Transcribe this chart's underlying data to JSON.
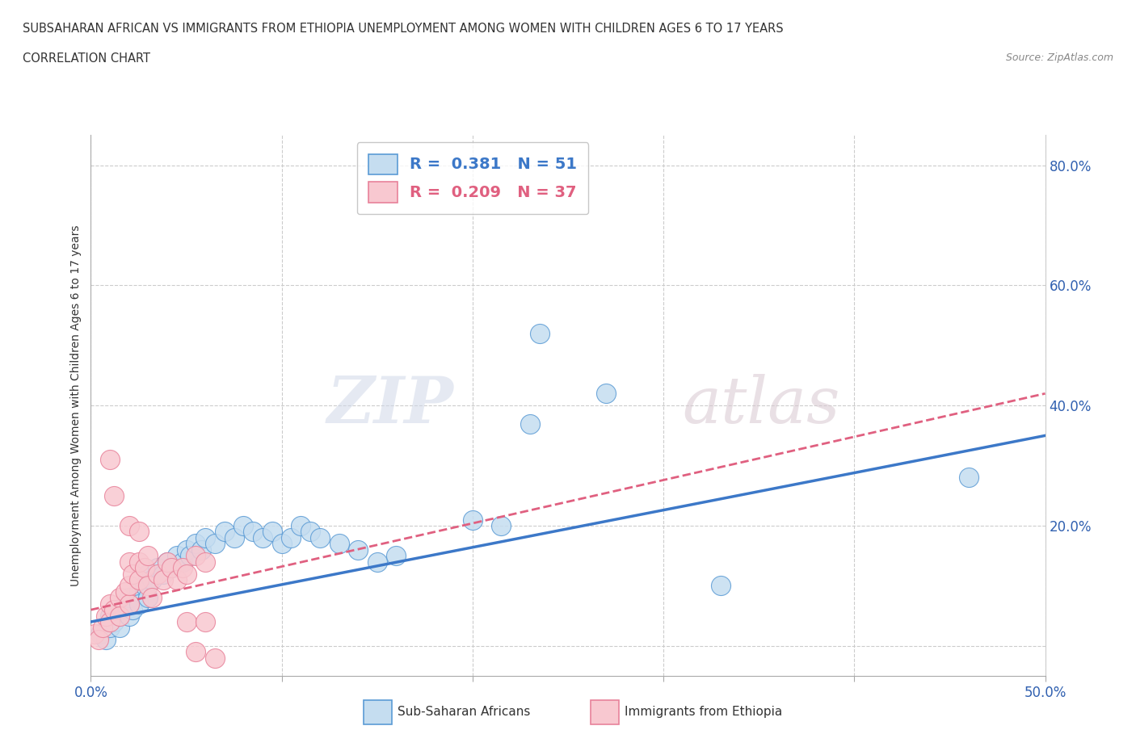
{
  "title_line1": "SUBSAHARAN AFRICAN VS IMMIGRANTS FROM ETHIOPIA UNEMPLOYMENT AMONG WOMEN WITH CHILDREN AGES 6 TO 17 YEARS",
  "title_line2": "CORRELATION CHART",
  "source": "Source: ZipAtlas.com",
  "ylabel": "Unemployment Among Women with Children Ages 6 to 17 years",
  "xlim": [
    0.0,
    0.5
  ],
  "ylim": [
    -0.05,
    0.85
  ],
  "x_ticks": [
    0.0,
    0.1,
    0.2,
    0.3,
    0.4,
    0.5
  ],
  "x_tick_labels": [
    "0.0%",
    "",
    "",
    "",
    "",
    "50.0%"
  ],
  "y_ticks": [
    0.0,
    0.2,
    0.4,
    0.6,
    0.8
  ],
  "y_tick_labels_right": [
    "",
    "20.0%",
    "40.0%",
    "60.0%",
    "80.0%"
  ],
  "grid_color": "#cccccc",
  "background_color": "#ffffff",
  "watermark_zip": "ZIP",
  "watermark_atlas": "atlas",
  "blue_R": "0.381",
  "blue_N": "51",
  "pink_R": "0.209",
  "pink_N": "37",
  "blue_fill": "#c5ddf0",
  "blue_edge": "#5b9bd5",
  "blue_line": "#3c78c8",
  "pink_fill": "#f8c8d0",
  "pink_edge": "#e8829a",
  "pink_line": "#e06080",
  "blue_scatter": [
    [
      0.005,
      0.02
    ],
    [
      0.008,
      0.01
    ],
    [
      0.01,
      0.03
    ],
    [
      0.01,
      0.05
    ],
    [
      0.012,
      0.04
    ],
    [
      0.015,
      0.06
    ],
    [
      0.015,
      0.03
    ],
    [
      0.018,
      0.07
    ],
    [
      0.02,
      0.05
    ],
    [
      0.02,
      0.08
    ],
    [
      0.022,
      0.06
    ],
    [
      0.025,
      0.09
    ],
    [
      0.025,
      0.07
    ],
    [
      0.028,
      0.1
    ],
    [
      0.03,
      0.08
    ],
    [
      0.03,
      0.12
    ],
    [
      0.032,
      0.11
    ],
    [
      0.035,
      0.13
    ],
    [
      0.038,
      0.12
    ],
    [
      0.04,
      0.14
    ],
    [
      0.042,
      0.13
    ],
    [
      0.045,
      0.15
    ],
    [
      0.048,
      0.14
    ],
    [
      0.05,
      0.16
    ],
    [
      0.052,
      0.15
    ],
    [
      0.055,
      0.17
    ],
    [
      0.058,
      0.16
    ],
    [
      0.06,
      0.18
    ],
    [
      0.065,
      0.17
    ],
    [
      0.07,
      0.19
    ],
    [
      0.075,
      0.18
    ],
    [
      0.08,
      0.2
    ],
    [
      0.085,
      0.19
    ],
    [
      0.09,
      0.18
    ],
    [
      0.095,
      0.19
    ],
    [
      0.1,
      0.17
    ],
    [
      0.105,
      0.18
    ],
    [
      0.11,
      0.2
    ],
    [
      0.115,
      0.19
    ],
    [
      0.12,
      0.18
    ],
    [
      0.13,
      0.17
    ],
    [
      0.14,
      0.16
    ],
    [
      0.15,
      0.14
    ],
    [
      0.16,
      0.15
    ],
    [
      0.2,
      0.21
    ],
    [
      0.215,
      0.2
    ],
    [
      0.23,
      0.37
    ],
    [
      0.235,
      0.52
    ],
    [
      0.27,
      0.42
    ],
    [
      0.33,
      0.1
    ],
    [
      0.46,
      0.28
    ]
  ],
  "pink_scatter": [
    [
      0.002,
      0.02
    ],
    [
      0.004,
      0.01
    ],
    [
      0.006,
      0.03
    ],
    [
      0.008,
      0.05
    ],
    [
      0.01,
      0.04
    ],
    [
      0.01,
      0.07
    ],
    [
      0.012,
      0.06
    ],
    [
      0.015,
      0.08
    ],
    [
      0.015,
      0.05
    ],
    [
      0.018,
      0.09
    ],
    [
      0.02,
      0.07
    ],
    [
      0.02,
      0.1
    ],
    [
      0.02,
      0.14
    ],
    [
      0.022,
      0.12
    ],
    [
      0.025,
      0.11
    ],
    [
      0.025,
      0.14
    ],
    [
      0.028,
      0.13
    ],
    [
      0.03,
      0.15
    ],
    [
      0.03,
      0.1
    ],
    [
      0.032,
      0.08
    ],
    [
      0.035,
      0.12
    ],
    [
      0.038,
      0.11
    ],
    [
      0.04,
      0.14
    ],
    [
      0.042,
      0.13
    ],
    [
      0.045,
      0.11
    ],
    [
      0.048,
      0.13
    ],
    [
      0.05,
      0.12
    ],
    [
      0.055,
      0.15
    ],
    [
      0.06,
      0.14
    ],
    [
      0.01,
      0.31
    ],
    [
      0.012,
      0.25
    ],
    [
      0.02,
      0.2
    ],
    [
      0.025,
      0.19
    ],
    [
      0.05,
      0.04
    ],
    [
      0.055,
      -0.01
    ],
    [
      0.06,
      0.04
    ],
    [
      0.065,
      -0.02
    ]
  ],
  "blue_trend_x": [
    0.0,
    0.5
  ],
  "blue_trend_y": [
    0.04,
    0.35
  ],
  "pink_trend_x": [
    0.0,
    0.5
  ],
  "pink_trend_y": [
    0.06,
    0.42
  ]
}
